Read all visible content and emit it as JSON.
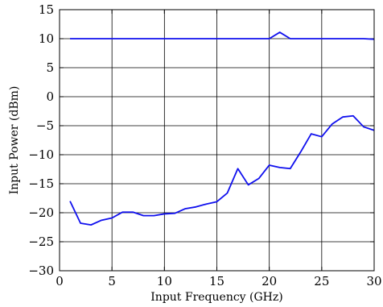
{
  "chart_data": {
    "type": "line",
    "title": "",
    "xlabel": "Input Frequency (GHz)",
    "ylabel": "Input Power (dBm)",
    "xlim": [
      0,
      30
    ],
    "ylim": [
      -30,
      15
    ],
    "xticks": [
      0,
      5,
      10,
      15,
      20,
      25,
      30
    ],
    "yticks": [
      -30,
      -25,
      -20,
      -15,
      -10,
      -5,
      0,
      5,
      10,
      15
    ],
    "grid": true,
    "legend": "none",
    "line_color": "#1010ee",
    "series": [
      {
        "x": [
          1,
          2,
          3,
          4,
          5,
          6,
          7,
          8,
          9,
          10,
          11,
          12,
          13,
          14,
          15,
          16,
          17,
          18,
          19,
          20,
          21,
          22,
          23,
          24,
          25,
          26,
          27,
          28,
          29,
          30
        ],
        "values": [
          10,
          10,
          10,
          10,
          10,
          10,
          10,
          10,
          10,
          10,
          10,
          10,
          10,
          10,
          10,
          10,
          10,
          10,
          10,
          10,
          11.1,
          10,
          10,
          10,
          10,
          10,
          10,
          10,
          10,
          9.9
        ]
      },
      {
        "x": [
          1,
          2,
          3,
          4,
          5,
          6,
          7,
          8,
          9,
          10,
          11,
          12,
          13,
          14,
          15,
          16,
          17,
          18,
          19,
          20,
          21,
          22,
          23,
          24,
          25,
          26,
          27,
          28,
          29,
          30
        ],
        "values": [
          -18,
          -21.8,
          -22.1,
          -21.3,
          -20.9,
          -19.9,
          -19.9,
          -20.5,
          -20.5,
          -20.2,
          -20.1,
          -19.3,
          -19,
          -18.5,
          -18.1,
          -16.6,
          -12.4,
          -15.2,
          -14.1,
          -11.8,
          -12.2,
          -12.4,
          -9.5,
          -6.4,
          -6.9,
          -4.7,
          -3.5,
          -3.3,
          -5.2,
          -5.8
        ]
      }
    ]
  }
}
